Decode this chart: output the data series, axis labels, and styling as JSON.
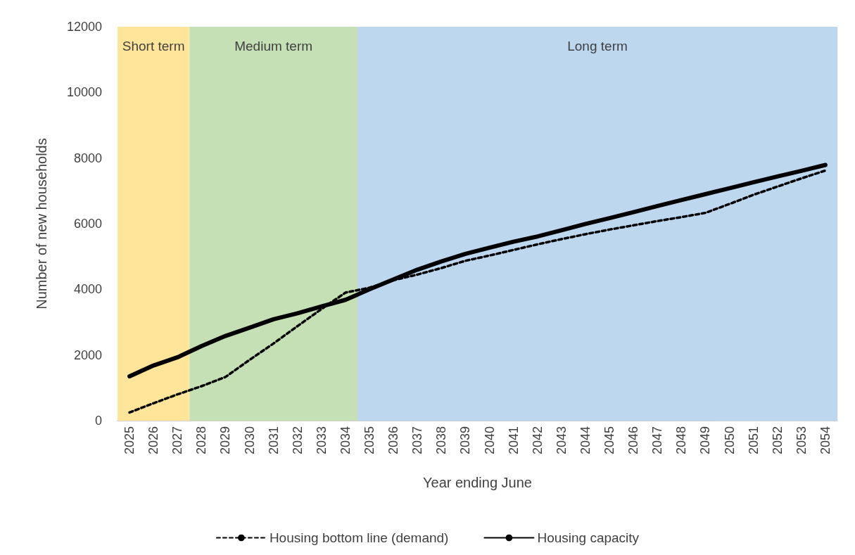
{
  "chart_data": {
    "type": "line",
    "xlabel": "Year ending June",
    "ylabel": "Number of new households",
    "x": [
      2025,
      2026,
      2027,
      2028,
      2029,
      2030,
      2031,
      2032,
      2033,
      2034,
      2035,
      2036,
      2037,
      2038,
      2039,
      2040,
      2041,
      2042,
      2043,
      2044,
      2045,
      2046,
      2047,
      2048,
      2049,
      2050,
      2051,
      2052,
      2053,
      2054
    ],
    "series": [
      {
        "name": "Housing bottom line (demand)",
        "color": "#000000",
        "line_style": "dashed",
        "values": [
          250,
          530,
          800,
          1050,
          1330,
          1850,
          2350,
          2880,
          3400,
          3900,
          4050,
          4280,
          4450,
          4650,
          4870,
          5030,
          5200,
          5370,
          5530,
          5680,
          5820,
          5950,
          6080,
          6200,
          6330,
          6600,
          6880,
          7130,
          7380,
          7620
        ]
      },
      {
        "name": "Housing capacity",
        "color": "#000000",
        "line_style": "solid",
        "values": [
          1350,
          1680,
          1930,
          2270,
          2580,
          2830,
          3090,
          3270,
          3480,
          3680,
          4000,
          4300,
          4600,
          4850,
          5080,
          5270,
          5450,
          5610,
          5800,
          5990,
          6170,
          6350,
          6540,
          6720,
          6900,
          7080,
          7260,
          7440,
          7610,
          7790
        ]
      }
    ],
    "xlim": [
      2024.5,
      2054.5
    ],
    "xticks": [
      2025,
      2026,
      2027,
      2028,
      2029,
      2030,
      2031,
      2032,
      2033,
      2034,
      2035,
      2036,
      2037,
      2038,
      2039,
      2040,
      2041,
      2042,
      2043,
      2044,
      2045,
      2046,
      2047,
      2048,
      2049,
      2050,
      2051,
      2052,
      2053,
      2054
    ],
    "ylim": [
      0,
      12000
    ],
    "yticks": [
      0,
      2000,
      4000,
      6000,
      8000,
      10000,
      12000
    ],
    "bands": [
      {
        "axis": "x",
        "from": 2024.5,
        "to": 2027.5,
        "label": "Short term",
        "color": "#fee599"
      },
      {
        "axis": "x",
        "from": 2027.5,
        "to": 2034.5,
        "label": "Medium term",
        "color": "#c5e0b4"
      },
      {
        "axis": "x",
        "from": 2034.5,
        "to": 2054.5,
        "label": "Long term",
        "color": "#bdd7ee"
      }
    ],
    "grid": false,
    "legend": "bottom",
    "marker": "none"
  }
}
